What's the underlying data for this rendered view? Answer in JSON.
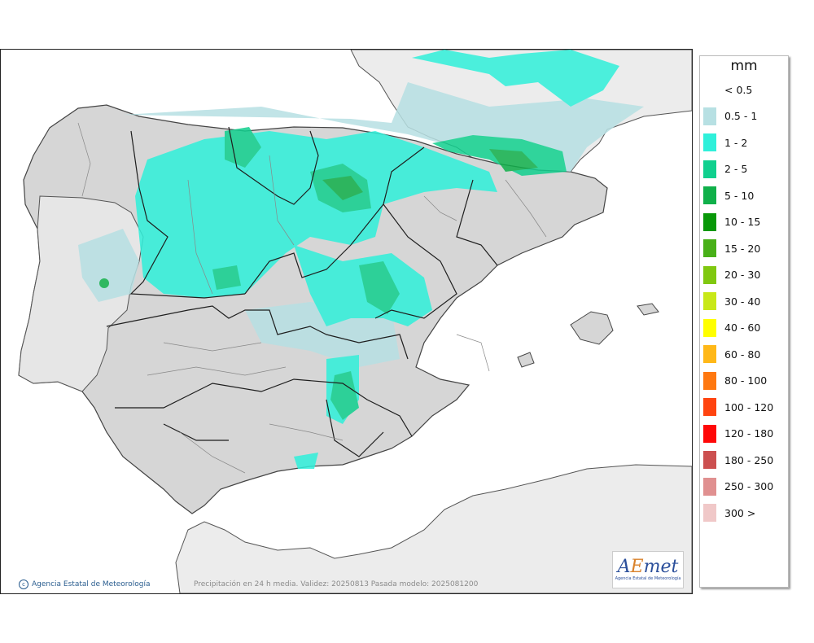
{
  "map": {
    "unit": "mm",
    "credit": "Agencia Estatal de Meteorología",
    "caption": "Precipitación en 24 h media. Validez: 20250813 Pasada modelo: 2025081200",
    "logo": {
      "word_a": "A",
      "word_b": "E",
      "word_c": "met",
      "sub": "Agencia Estatal de Meteorología"
    },
    "colors": {
      "sea": "#ffffff",
      "foreign_land": "#ececec",
      "spain_land": "#d6d6d6",
      "border": "#1e1e1e"
    },
    "legend": [
      {
        "label": "< 0.5",
        "color": ""
      },
      {
        "label": "0.5 - 1",
        "color": "#b7e0e3"
      },
      {
        "label": "1 - 2",
        "color": "#2ff0da"
      },
      {
        "label": "2 - 5",
        "color": "#10d08e"
      },
      {
        "label": "5 - 10",
        "color": "#10b04a"
      },
      {
        "label": "10 - 15",
        "color": "#089808"
      },
      {
        "label": "15 - 20",
        "color": "#48b018"
      },
      {
        "label": "20 - 30",
        "color": "#80c810"
      },
      {
        "label": "30 - 40",
        "color": "#c8e818"
      },
      {
        "label": "40 - 60",
        "color": "#ffff00"
      },
      {
        "label": "60 - 80",
        "color": "#ffb818"
      },
      {
        "label": "80 - 100",
        "color": "#ff7810"
      },
      {
        "label": "100 - 120",
        "color": "#ff4410"
      },
      {
        "label": "120 - 180",
        "color": "#ff0808"
      },
      {
        "label": "180 - 250",
        "color": "#cc5050"
      },
      {
        "label": "250 - 300",
        "color": "#e09090"
      },
      {
        "label": "300 >",
        "color": "#f0c8c8"
      }
    ]
  }
}
